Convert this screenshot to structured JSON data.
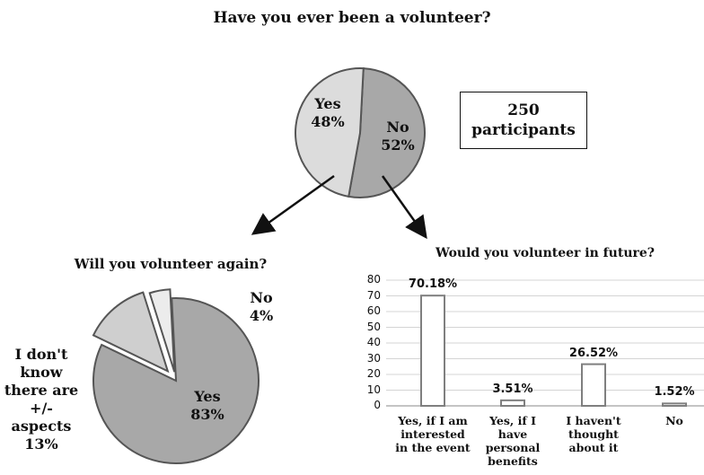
{
  "chart_data": [
    {
      "type": "pie",
      "title": "Have you ever been a volunteer?",
      "slices": [
        {
          "label": "Yes",
          "value": 48,
          "display": "48%",
          "color": "#dcdcdc"
        },
        {
          "label": "No",
          "value": 52,
          "display": "52%",
          "color": "#a8a8a8"
        }
      ],
      "annotation": {
        "line1": "250",
        "line2": "participants"
      }
    },
    {
      "type": "pie",
      "title": "Will you volunteer again?",
      "slices": [
        {
          "label": "Yes",
          "value": 83,
          "display": "83%",
          "color": "#a8a8a8"
        },
        {
          "label": "I don't know there are +/- aspects",
          "value": 13,
          "display": "13%",
          "color": "#cfcfcf",
          "lines": [
            "I don't",
            "know",
            "there are",
            "+/-",
            "aspects"
          ]
        },
        {
          "label": "No",
          "value": 4,
          "display": "4%",
          "color": "#ececec"
        }
      ]
    },
    {
      "type": "bar",
      "title": "Would you volunteer in future?",
      "categories": [
        [
          "Yes, if I am",
          "interested",
          "in the event"
        ],
        [
          "Yes, if I",
          "have",
          "personal",
          "benefits"
        ],
        [
          "I haven't",
          "thought",
          "about it"
        ],
        [
          "No"
        ]
      ],
      "values": [
        70.18,
        3.51,
        26.52,
        1.52
      ],
      "value_labels": [
        "70.18%",
        "3.51%",
        "26.52%",
        "1.52%"
      ],
      "ylim": [
        0,
        80
      ],
      "yticks": [
        "0",
        "10",
        "20",
        "30",
        "40",
        "50",
        "60",
        "70",
        "80"
      ],
      "grid": true
    }
  ]
}
